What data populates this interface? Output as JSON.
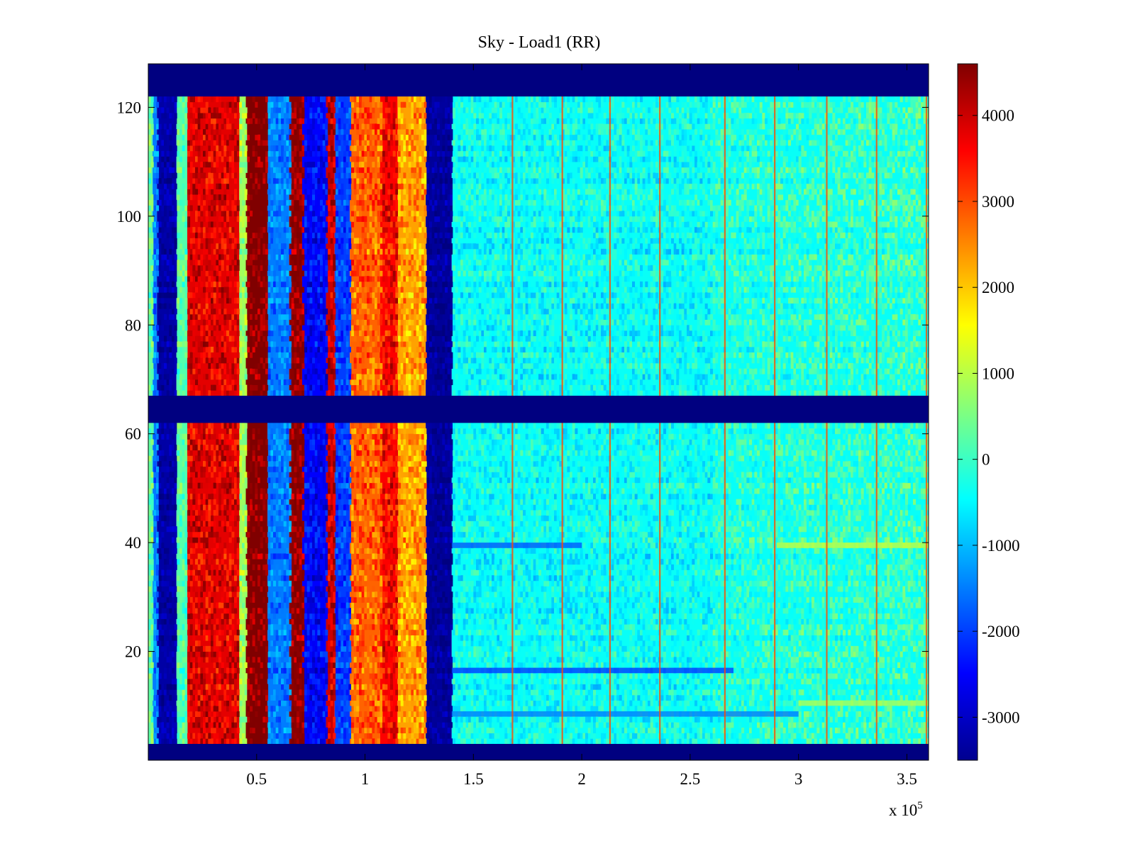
{
  "chart_data": {
    "type": "heatmap",
    "title": "Sky - Load1 (RR)",
    "xlabel": "",
    "ylabel": "",
    "x_exponent_label": "x 10",
    "x_exponent_power": "5",
    "xlim": [
      0,
      3.6
    ],
    "ylim": [
      0,
      128
    ],
    "x_ticks": [
      0.5,
      1,
      1.5,
      2,
      2.5,
      3,
      3.5
    ],
    "x_tick_labels": [
      "0.5",
      "1",
      "1.5",
      "2",
      "2.5",
      "3",
      "3.5"
    ],
    "y_ticks": [
      20,
      40,
      60,
      80,
      100,
      120
    ],
    "y_tick_labels": [
      "20",
      "40",
      "60",
      "80",
      "100",
      "120"
    ],
    "colormap": "jet",
    "clim": [
      -3500,
      4600
    ],
    "colorbar": {
      "placement": "right",
      "ticks": [
        -3000,
        -2000,
        -1000,
        0,
        1000,
        2000,
        3000,
        4000
      ],
      "tick_labels": [
        "-3000",
        "-2000",
        "-1000",
        "0",
        "1000",
        "2000",
        "3000",
        "4000"
      ]
    },
    "masked_rows": [
      [
        0,
        3
      ],
      [
        62,
        67
      ],
      [
        122,
        128
      ]
    ],
    "column_profile": [
      {
        "x_start": 0.0,
        "x_end": 0.02,
        "value": 300
      },
      {
        "x_start": 0.02,
        "x_end": 0.04,
        "value": -1500
      },
      {
        "x_start": 0.04,
        "x_end": 0.13,
        "value": -3200
      },
      {
        "x_start": 0.13,
        "x_end": 0.18,
        "value": 200
      },
      {
        "x_start": 0.18,
        "x_end": 0.42,
        "value": 3800
      },
      {
        "x_start": 0.42,
        "x_end": 0.45,
        "value": 800
      },
      {
        "x_start": 0.45,
        "x_end": 0.55,
        "value": 4600
      },
      {
        "x_start": 0.55,
        "x_end": 0.65,
        "value": -1500
      },
      {
        "x_start": 0.65,
        "x_end": 0.71,
        "value": 4500
      },
      {
        "x_start": 0.71,
        "x_end": 0.82,
        "value": -2500
      },
      {
        "x_start": 0.82,
        "x_end": 0.86,
        "value": 4000
      },
      {
        "x_start": 0.86,
        "x_end": 0.93,
        "value": -2000
      },
      {
        "x_start": 0.93,
        "x_end": 1.07,
        "value": 2800
      },
      {
        "x_start": 1.07,
        "x_end": 1.15,
        "value": 3600
      },
      {
        "x_start": 1.15,
        "x_end": 1.28,
        "value": 2300
      },
      {
        "x_start": 1.28,
        "x_end": 1.4,
        "value": -3300
      },
      {
        "x_start": 1.4,
        "x_end": 3.6,
        "value": -400
      }
    ],
    "vertical_streaks_x": [
      1.68,
      1.91,
      2.13,
      2.36,
      2.66,
      2.89,
      3.13,
      3.36,
      3.59
    ],
    "streak_value": 3000,
    "row_features": [
      {
        "y": 39,
        "x_start": 1.4,
        "x_end": 2.0,
        "value": -1800
      },
      {
        "y": 39,
        "x_start": 2.9,
        "x_end": 3.6,
        "value": 1100
      },
      {
        "y": 16,
        "x_start": 1.4,
        "x_end": 2.7,
        "value": -2000
      },
      {
        "y": 10,
        "x_start": 3.0,
        "x_end": 3.6,
        "value": 900
      },
      {
        "y": 8,
        "x_start": 1.4,
        "x_end": 3.0,
        "value": -1500
      }
    ]
  }
}
